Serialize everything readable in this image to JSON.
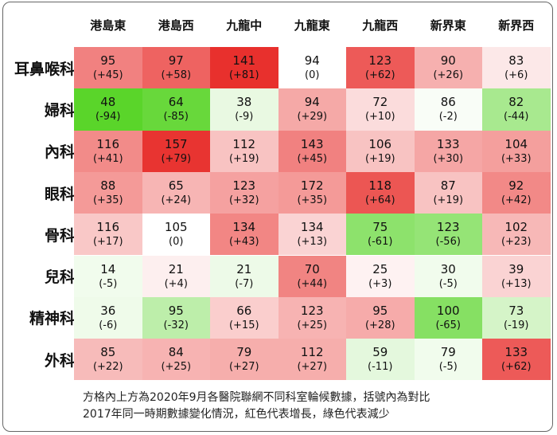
{
  "chart_data": {
    "type": "heatmap",
    "columns": [
      "港島東",
      "港島西",
      "九龍中",
      "九龍東",
      "九龍西",
      "新界東",
      "新界西"
    ],
    "rows": [
      "耳鼻喉科",
      "婦科",
      "內科",
      "眼科",
      "骨科",
      "兒科",
      "精神科",
      "外科"
    ],
    "cells": [
      [
        {
          "value": "95",
          "diff": "(+45)",
          "d": 45
        },
        {
          "value": "97",
          "diff": "(+58)",
          "d": 58
        },
        {
          "value": "141",
          "diff": "(+81)",
          "d": 81
        },
        {
          "value": "94",
          "diff": "(0)",
          "d": 0
        },
        {
          "value": "123",
          "diff": "(+62)",
          "d": 62
        },
        {
          "value": "90",
          "diff": "(+26)",
          "d": 26
        },
        {
          "value": "83",
          "diff": "(+6)",
          "d": 6
        }
      ],
      [
        {
          "value": "48",
          "diff": "(-94)",
          "d": -94
        },
        {
          "value": "64",
          "diff": "(-85)",
          "d": -85
        },
        {
          "value": "38",
          "diff": "(-9)",
          "d": -9
        },
        {
          "value": "94",
          "diff": "(+29)",
          "d": 29
        },
        {
          "value": "72",
          "diff": "(+10)",
          "d": 10
        },
        {
          "value": "86",
          "diff": "(-2)",
          "d": -2
        },
        {
          "value": "82",
          "diff": "(-44)",
          "d": -44
        }
      ],
      [
        {
          "value": "116",
          "diff": "(+41)",
          "d": 41
        },
        {
          "value": "157",
          "diff": "(+79)",
          "d": 79
        },
        {
          "value": "112",
          "diff": "(+19)",
          "d": 19
        },
        {
          "value": "143",
          "diff": "(+45)",
          "d": 45
        },
        {
          "value": "106",
          "diff": "(+19)",
          "d": 19
        },
        {
          "value": "133",
          "diff": "(+30)",
          "d": 30
        },
        {
          "value": "104",
          "diff": "(+33)",
          "d": 33
        }
      ],
      [
        {
          "value": "88",
          "diff": "(+35)",
          "d": 35
        },
        {
          "value": "65",
          "diff": "(+24)",
          "d": 24
        },
        {
          "value": "123",
          "diff": "(+32)",
          "d": 32
        },
        {
          "value": "172",
          "diff": "(+35)",
          "d": 35
        },
        {
          "value": "118",
          "diff": "(+64)",
          "d": 64
        },
        {
          "value": "87",
          "diff": "(+19)",
          "d": 19
        },
        {
          "value": "92",
          "diff": "(+42)",
          "d": 42
        }
      ],
      [
        {
          "value": "116",
          "diff": "(+17)",
          "d": 17
        },
        {
          "value": "105",
          "diff": "(0)",
          "d": 0
        },
        {
          "value": "134",
          "diff": "(+43)",
          "d": 43
        },
        {
          "value": "134",
          "diff": "(+13)",
          "d": 13
        },
        {
          "value": "75",
          "diff": "(-61)",
          "d": -61
        },
        {
          "value": "123",
          "diff": "(-56)",
          "d": -56
        },
        {
          "value": "102",
          "diff": "(+23)",
          "d": 23
        }
      ],
      [
        {
          "value": "14",
          "diff": "(-5)",
          "d": -5
        },
        {
          "value": "21",
          "diff": "(+4)",
          "d": 4
        },
        {
          "value": "21",
          "diff": "(-7)",
          "d": -7
        },
        {
          "value": "70",
          "diff": "(+44)",
          "d": 44
        },
        {
          "value": "25",
          "diff": "(+3)",
          "d": 3
        },
        {
          "value": "30",
          "diff": "(-5)",
          "d": -5
        },
        {
          "value": "39",
          "diff": "(+13)",
          "d": 13
        }
      ],
      [
        {
          "value": "36",
          "diff": "(-6)",
          "d": -6
        },
        {
          "value": "95",
          "diff": "(-32)",
          "d": -32
        },
        {
          "value": "66",
          "diff": "(+15)",
          "d": 15
        },
        {
          "value": "123",
          "diff": "(+25)",
          "d": 25
        },
        {
          "value": "95",
          "diff": "(+28)",
          "d": 28
        },
        {
          "value": "100",
          "diff": "(-65)",
          "d": -65
        },
        {
          "value": "73",
          "diff": "(-19)",
          "d": -19
        }
      ],
      [
        {
          "value": "85",
          "diff": "(+22)",
          "d": 22
        },
        {
          "value": "84",
          "diff": "(+25)",
          "d": 25
        },
        {
          "value": "79",
          "diff": "(+27)",
          "d": 27
        },
        {
          "value": "112",
          "diff": "(+27)",
          "d": 27
        },
        {
          "value": "59",
          "diff": "(-11)",
          "d": -11
        },
        {
          "value": "79",
          "diff": "(-5)",
          "d": -5
        },
        {
          "value": "133",
          "diff": "(+62)",
          "d": 62
        }
      ]
    ],
    "color_scale": {
      "increase": "#e8302d",
      "decrease": "#5ad52a",
      "neutral": "#ffffff"
    },
    "footnote": [
      "方格內上方為2020年9月各醫院聯網不同科室輪候數據，括號內為對比",
      "2017年同一時期數據變化情況，紅色代表增長，綠色代表減少"
    ]
  }
}
